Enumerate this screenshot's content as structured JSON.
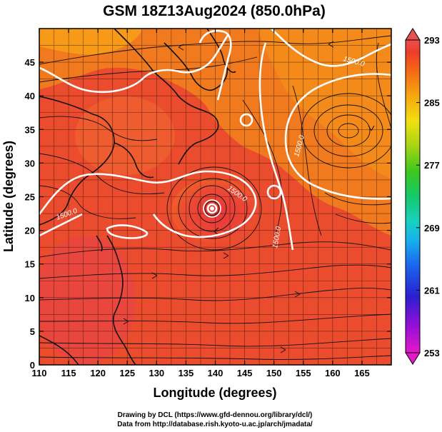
{
  "title": "GSM 18Z13Aug2024 (850.0hPa)",
  "x_axis": {
    "label": "Longitude (degrees)",
    "range": [
      110,
      170
    ],
    "ticks": [
      110,
      115,
      120,
      125,
      130,
      135,
      140,
      145,
      150,
      155,
      160,
      165
    ],
    "tick_labels": [
      "110",
      "115",
      "120",
      "125",
      "130",
      "135",
      "140",
      "145",
      "150",
      "155",
      "160",
      "165"
    ]
  },
  "y_axis": {
    "label": "Latitude  (degrees)",
    "range": [
      0,
      50
    ],
    "ticks": [
      0,
      5,
      10,
      15,
      20,
      25,
      30,
      35,
      40,
      45
    ],
    "tick_labels": [
      "0",
      "5",
      "10",
      "15",
      "20",
      "25",
      "30",
      "35",
      "40",
      "45"
    ]
  },
  "colorbar": {
    "range": [
      253,
      293
    ],
    "ticks": [
      253,
      261,
      269,
      277,
      285,
      293
    ],
    "tick_labels": [
      "253",
      "261",
      "269",
      "277",
      "285",
      "293"
    ],
    "colors": [
      "#e619c8",
      "#9b0fd6",
      "#2a1fd0",
      "#1a66ee",
      "#18b0ee",
      "#18d0c0",
      "#16c86a",
      "#3cc81c",
      "#a6d414",
      "#f0e010",
      "#f6a810",
      "#f46a14",
      "#ee3c2a",
      "#e8504e"
    ]
  },
  "contour_labels": [
    "1500.0",
    "1500.0",
    "1500.0",
    "1500.0",
    "1500.0"
  ],
  "features": {
    "typhoon_center": {
      "lon": 139.3,
      "lat": 25.5
    },
    "anticyclone_center": {
      "lon": 160.8,
      "lat": 36.7
    }
  },
  "credits": {
    "line1": "Drawing by DCL (https://www.gfd-dennou.org/library/dcl/)",
    "line2": "Data from http://database.rish.kyoto-u.ac.jp/arch/jmadata/"
  }
}
